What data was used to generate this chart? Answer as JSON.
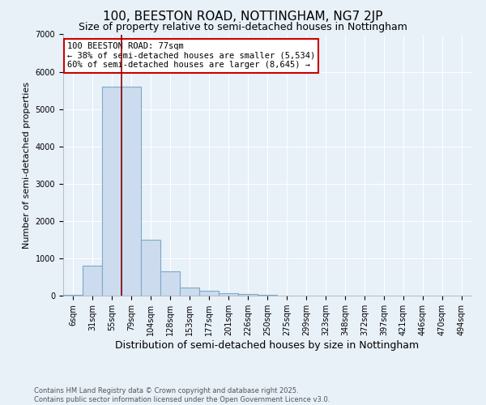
{
  "title": "100, BEESTON ROAD, NOTTINGHAM, NG7 2JP",
  "subtitle": "Size of property relative to semi-detached houses in Nottingham",
  "xlabel": "Distribution of semi-detached houses by size in Nottingham",
  "ylabel": "Number of semi-detached properties",
  "categories": [
    "6sqm",
    "31sqm",
    "55sqm",
    "79sqm",
    "104sqm",
    "128sqm",
    "153sqm",
    "177sqm",
    "201sqm",
    "226sqm",
    "250sqm",
    "275sqm",
    "299sqm",
    "323sqm",
    "348sqm",
    "372sqm",
    "397sqm",
    "421sqm",
    "446sqm",
    "470sqm",
    "494sqm"
  ],
  "values": [
    20,
    800,
    5600,
    5600,
    1500,
    650,
    225,
    125,
    75,
    50,
    30,
    10,
    0,
    0,
    0,
    0,
    0,
    0,
    0,
    0,
    0
  ],
  "bar_color": "#ccdcee",
  "bar_edge_color": "#7aaac8",
  "vline_x": 2.5,
  "vline_color": "#8b0000",
  "annotation_text": "100 BEESTON ROAD: 77sqm\n← 38% of semi-detached houses are smaller (5,534)\n60% of semi-detached houses are larger (8,645) →",
  "annotation_box_color": "#ffffff",
  "annotation_edge_color": "#cc0000",
  "ylim": [
    0,
    7000
  ],
  "yticks": [
    0,
    1000,
    2000,
    3000,
    4000,
    5000,
    6000,
    7000
  ],
  "footer": "Contains HM Land Registry data © Crown copyright and database right 2025.\nContains public sector information licensed under the Open Government Licence v3.0.",
  "bg_color": "#e8f0f8",
  "title_fontsize": 11,
  "subtitle_fontsize": 9,
  "grid_color": "#ffffff",
  "tick_fontsize": 7,
  "ylabel_fontsize": 8,
  "xlabel_fontsize": 9
}
